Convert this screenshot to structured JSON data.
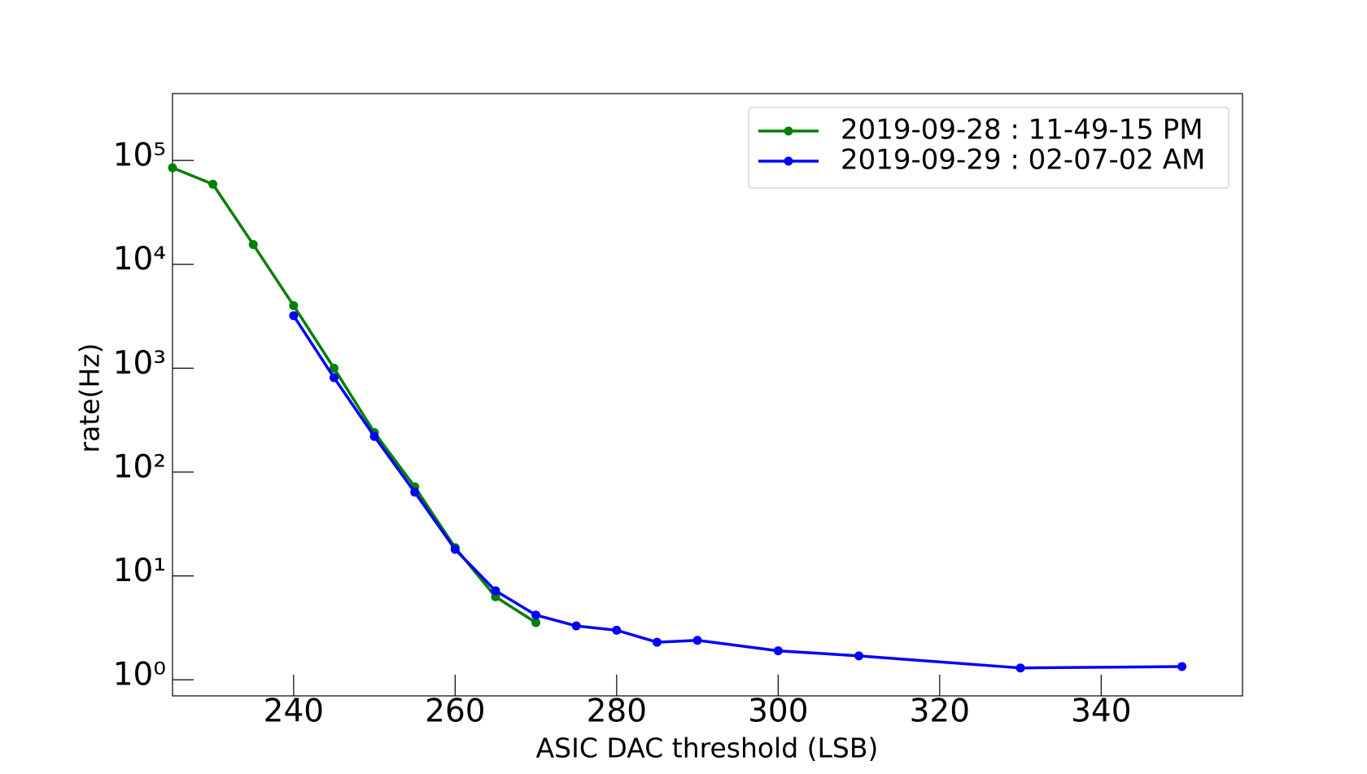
{
  "chart_data": {
    "type": "line",
    "xlabel": "ASIC DAC threshold (LSB)",
    "ylabel": "rate(Hz)",
    "log_y": true,
    "legend": "upper right",
    "xlim": [
      225,
      357.5
    ],
    "xticks": [
      240,
      260,
      280,
      300,
      320,
      340
    ],
    "ylim": [
      0.7,
      440000
    ],
    "yticks": [
      {
        "value": 1,
        "label": "10⁰"
      },
      {
        "value": 10,
        "label": "10¹"
      },
      {
        "value": 100,
        "label": "10²"
      },
      {
        "value": 1000,
        "label": "10³"
      },
      {
        "value": 10000,
        "label": "10⁴"
      },
      {
        "value": 100000,
        "label": "10⁵"
      }
    ],
    "series": [
      {
        "name": "2019-09-28 : 11-49-15 PM",
        "color": "#008000",
        "x": [
          225,
          230,
          235,
          240,
          245,
          250,
          255,
          260,
          265,
          270
        ],
        "values": [
          85000,
          59000,
          15500,
          4000,
          1000,
          240,
          72,
          18.7,
          6.3,
          3.55
        ]
      },
      {
        "name": "2019-09-29 : 02-07-02 AM",
        "color": "#0000ff",
        "x": [
          240,
          245,
          250,
          255,
          260,
          265,
          270,
          275,
          280,
          285,
          290,
          300,
          310,
          330,
          350
        ],
        "values": [
          3200,
          810,
          220,
          64,
          18,
          7.2,
          4.2,
          3.3,
          3.0,
          2.3,
          2.4,
          1.9,
          1.7,
          1.3,
          1.34
        ]
      }
    ]
  }
}
